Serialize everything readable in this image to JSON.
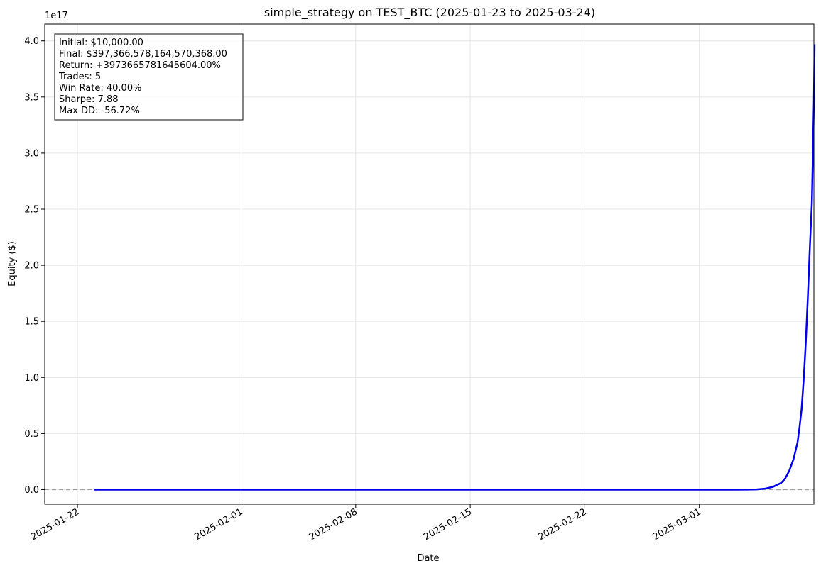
{
  "chart_data": {
    "type": "line",
    "title": "simple_strategy on TEST_BTC (2025-01-23 to 2025-03-24)",
    "xlabel": "Date",
    "ylabel": "Equity ($)",
    "y_offset_label": "1e17",
    "x_ticks": [
      "2025-01-22",
      "2025-02-01",
      "2025-02-08",
      "2025-02-15",
      "2025-02-22",
      "2025-03-01"
    ],
    "y_ticks": [
      "0.0",
      "0.5",
      "1.0",
      "1.5",
      "2.0",
      "2.5",
      "3.0",
      "3.5",
      "4.0"
    ],
    "ylim": [
      -0.13,
      4.15
    ],
    "xlim": [
      "2025-01-20",
      "2025-03-08"
    ],
    "grid": true,
    "baseline": 0,
    "series": [
      {
        "color": "#0000ee",
        "x": [
          "2025-01-23",
          "2025-03-03",
          "2025-03-04",
          "2025-03-04T12:00",
          "2025-03-05",
          "2025-03-05T12:00",
          "2025-03-06",
          "2025-03-06T06:00",
          "2025-03-06T12:00",
          "2025-03-06T18:00",
          "2025-03-07",
          "2025-03-07T03:00",
          "2025-03-07T06:00",
          "2025-03-07T09:00",
          "2025-03-07T12:00",
          "2025-03-07T15:00",
          "2025-03-07T18:00",
          "2025-03-07T21:00",
          "2025-03-08T00:00",
          "2025-03-08T01:00"
        ],
        "y": [
          0,
          0,
          0.0001,
          0.002,
          0.008,
          0.025,
          0.06,
          0.1,
          0.17,
          0.27,
          0.42,
          0.56,
          0.72,
          0.98,
          1.3,
          1.7,
          2.15,
          2.55,
          3.45,
          3.97
        ]
      }
    ],
    "stats_box": [
      "Initial: $10,000.00",
      "Final: $397,366,578,164,570,368.00",
      "Return: +3973665781645604.00%",
      "Trades: 5",
      "Win Rate: 40.00%",
      "Sharpe: 7.88",
      "Max DD: -56.72%"
    ]
  }
}
